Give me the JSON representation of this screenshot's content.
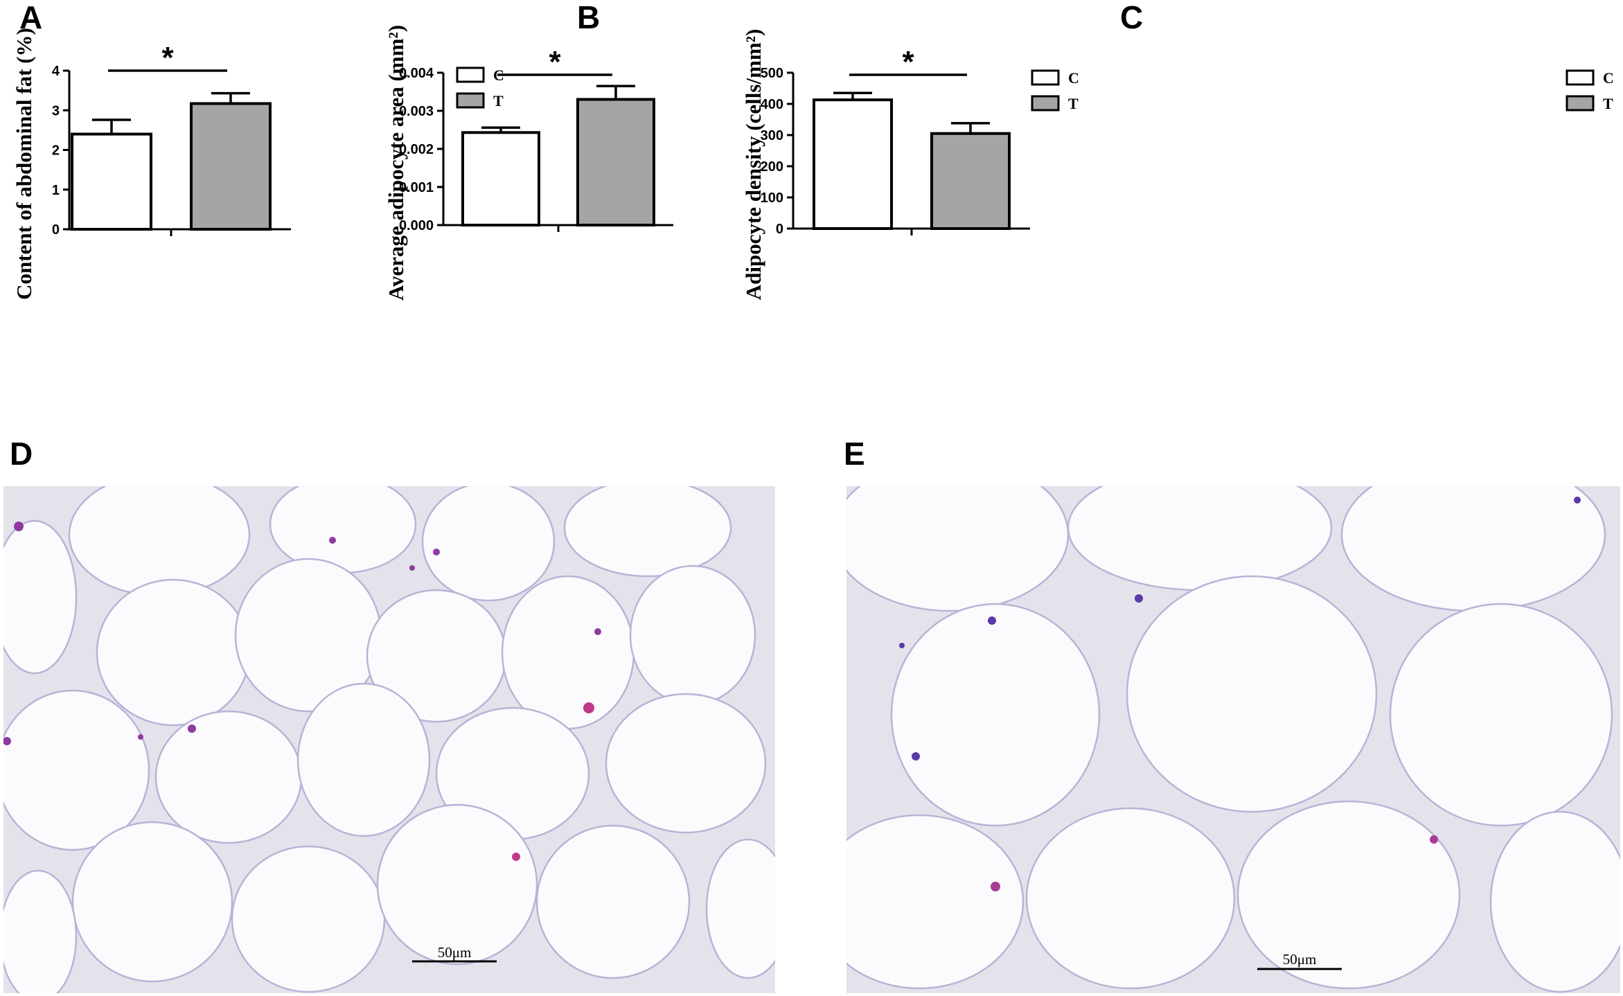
{
  "panels": {
    "a": "A",
    "b": "B",
    "c": "C",
    "d": "D",
    "e": "E"
  },
  "legend": {
    "c": "C",
    "t": "T"
  },
  "colors": {
    "c": "#ffffff",
    "t": "#a5a5a8"
  },
  "significance_mark": "*",
  "scale_bar_label": "50μm",
  "chart_data": [
    {
      "type": "bar",
      "panel": "A",
      "ylabel": "Content of abdominal fat (%)",
      "categories": [
        "C",
        "T"
      ],
      "values": [
        2.4,
        3.17
      ],
      "errors": [
        0.36,
        0.26
      ],
      "ylim": [
        0,
        4
      ],
      "yticks": [
        "0",
        "1",
        "2",
        "3",
        "4"
      ],
      "significance": "*",
      "legend": [
        "C",
        "T"
      ],
      "legend_position": "right"
    },
    {
      "type": "bar",
      "panel": "B",
      "ylabel": "Average adipocyte area (mm²)",
      "categories": [
        "C",
        "T"
      ],
      "values": [
        0.00243,
        0.0033
      ],
      "errors": [
        0.00013,
        0.00035
      ],
      "ylim": [
        0,
        0.004
      ],
      "yticks": [
        "0.000",
        "0.001",
        "0.002",
        "0.003",
        "0.004"
      ],
      "significance": "*",
      "legend": [
        "C",
        "T"
      ],
      "legend_position": "right"
    },
    {
      "type": "bar",
      "panel": "C",
      "ylabel": "Adipocyte density (cells/mm²)",
      "categories": [
        "C",
        "T"
      ],
      "values": [
        413,
        305
      ],
      "errors": [
        22,
        33
      ],
      "ylim": [
        0,
        500
      ],
      "yticks": [
        "0",
        "100",
        "200",
        "300",
        "400",
        "500"
      ],
      "significance": "*",
      "legend": [
        "C",
        "T"
      ],
      "legend_position": "right"
    }
  ]
}
